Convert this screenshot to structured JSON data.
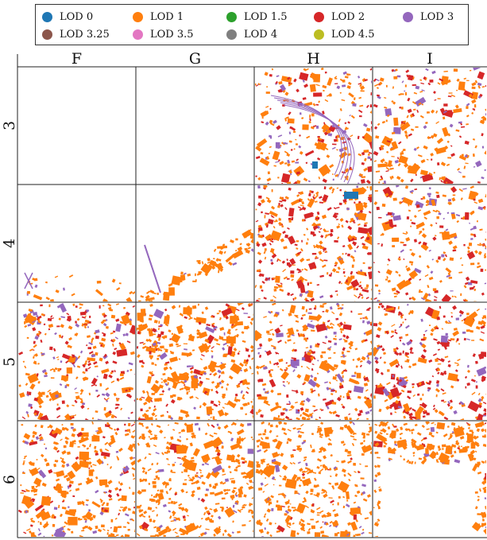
{
  "legend": [
    {
      "label": "LOD 0",
      "color": "#1f77b4"
    },
    {
      "label": "LOD 1",
      "color": "#ff7f0e"
    },
    {
      "label": "LOD 1.5",
      "color": "#2ca02c"
    },
    {
      "label": "LOD 2",
      "color": "#d62728"
    },
    {
      "label": "LOD 3",
      "color": "#9467bd"
    },
    {
      "label": "LOD 3.25",
      "color": "#8c564b"
    },
    {
      "label": "LOD 3.5",
      "color": "#e377c2"
    },
    {
      "label": "LOD 4",
      "color": "#7f7f7f"
    },
    {
      "label": "LOD 4.5",
      "color": "#bcbd22"
    }
  ],
  "columns": [
    "F",
    "G",
    "H",
    "I"
  ],
  "rows": [
    "3",
    "4",
    "5",
    "6"
  ],
  "tiles": {
    "F3": {
      "density": 0,
      "mix": {
        "LOD 1": 0,
        "LOD 2": 0,
        "LOD 3": 0
      }
    },
    "G3": {
      "density": 0,
      "mix": {
        "LOD 1": 0,
        "LOD 2": 0,
        "LOD 3": 0
      }
    },
    "H3": {
      "density": 0.55,
      "mix": {
        "LOD 1": 0.55,
        "LOD 2": 0.3,
        "LOD 3": 0.15
      }
    },
    "I3": {
      "density": 0.5,
      "mix": {
        "LOD 1": 0.6,
        "LOD 2": 0.25,
        "LOD 3": 0.15
      }
    },
    "F4": {
      "density": 0.05,
      "mix": {
        "LOD 1": 0.85,
        "LOD 2": 0,
        "LOD 3": 0.15
      }
    },
    "G4": {
      "density": 0.15,
      "mix": {
        "LOD 1": 0.95,
        "LOD 2": 0,
        "LOD 3": 0.05
      }
    },
    "H4": {
      "density": 0.75,
      "mix": {
        "LOD 1": 0.5,
        "LOD 2": 0.45,
        "LOD 3": 0.05
      }
    },
    "I4": {
      "density": 0.5,
      "mix": {
        "LOD 1": 0.6,
        "LOD 2": 0.25,
        "LOD 3": 0.15
      }
    },
    "F5": {
      "density": 0.65,
      "mix": {
        "LOD 1": 0.5,
        "LOD 2": 0.35,
        "LOD 3": 0.15
      }
    },
    "G5": {
      "density": 0.8,
      "mix": {
        "LOD 1": 0.75,
        "LOD 2": 0.15,
        "LOD 3": 0.1
      }
    },
    "H5": {
      "density": 0.75,
      "mix": {
        "LOD 1": 0.55,
        "LOD 2": 0.3,
        "LOD 3": 0.15
      }
    },
    "I5": {
      "density": 0.6,
      "mix": {
        "LOD 1": 0.4,
        "LOD 2": 0.45,
        "LOD 3": 0.15
      }
    },
    "F6": {
      "density": 0.7,
      "mix": {
        "LOD 1": 0.8,
        "LOD 2": 0.12,
        "LOD 3": 0.08
      }
    },
    "G6": {
      "density": 0.75,
      "mix": {
        "LOD 1": 0.85,
        "LOD 2": 0.05,
        "LOD 3": 0.1
      }
    },
    "H6": {
      "density": 0.7,
      "mix": {
        "LOD 1": 0.85,
        "LOD 2": 0.05,
        "LOD 3": 0.1
      }
    },
    "I6": {
      "density": 0.45,
      "mix": {
        "LOD 1": 0.9,
        "LOD 2": 0.05,
        "LOD 3": 0.05
      }
    }
  }
}
